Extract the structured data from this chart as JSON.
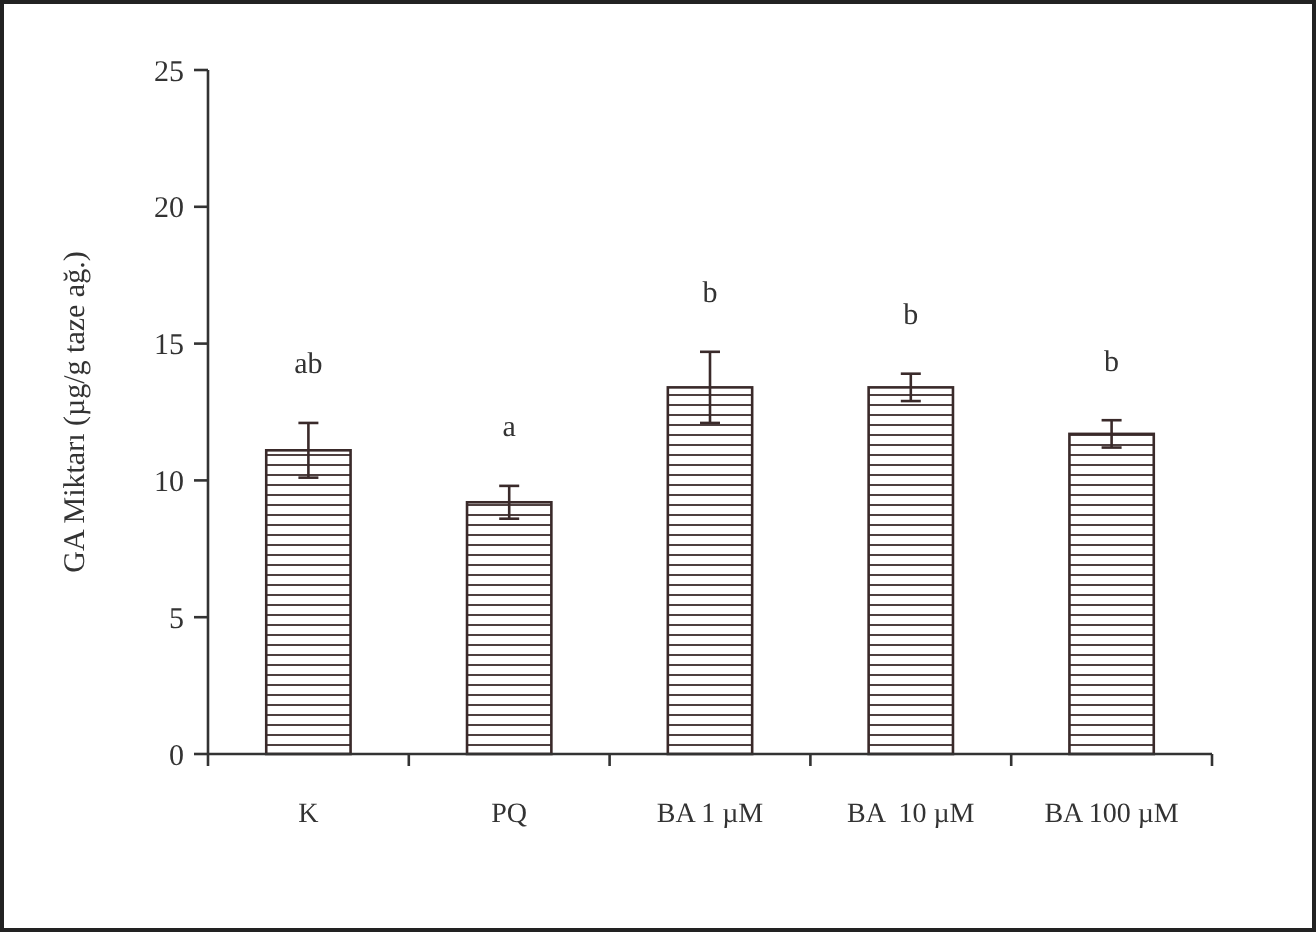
{
  "chart_data": {
    "type": "bar",
    "ylabel": "GA Miktarı (µg/g taze ağ.)",
    "categories": [
      "K",
      "PQ",
      "BA 1 µM",
      "BA  10 µM",
      "BA 100 µM"
    ],
    "series": [
      {
        "color": "#3a2a2a",
        "values": [
          11.1,
          9.2,
          13.4,
          13.4,
          11.7
        ],
        "errors": [
          1.0,
          0.6,
          1.3,
          0.5,
          0.5
        ]
      }
    ],
    "ylim": [
      0,
      25
    ],
    "yticks": [
      0,
      5,
      10,
      15,
      20,
      25
    ],
    "grid": false,
    "annotations": [
      "ab",
      "a",
      "b",
      "b",
      "b"
    ]
  }
}
